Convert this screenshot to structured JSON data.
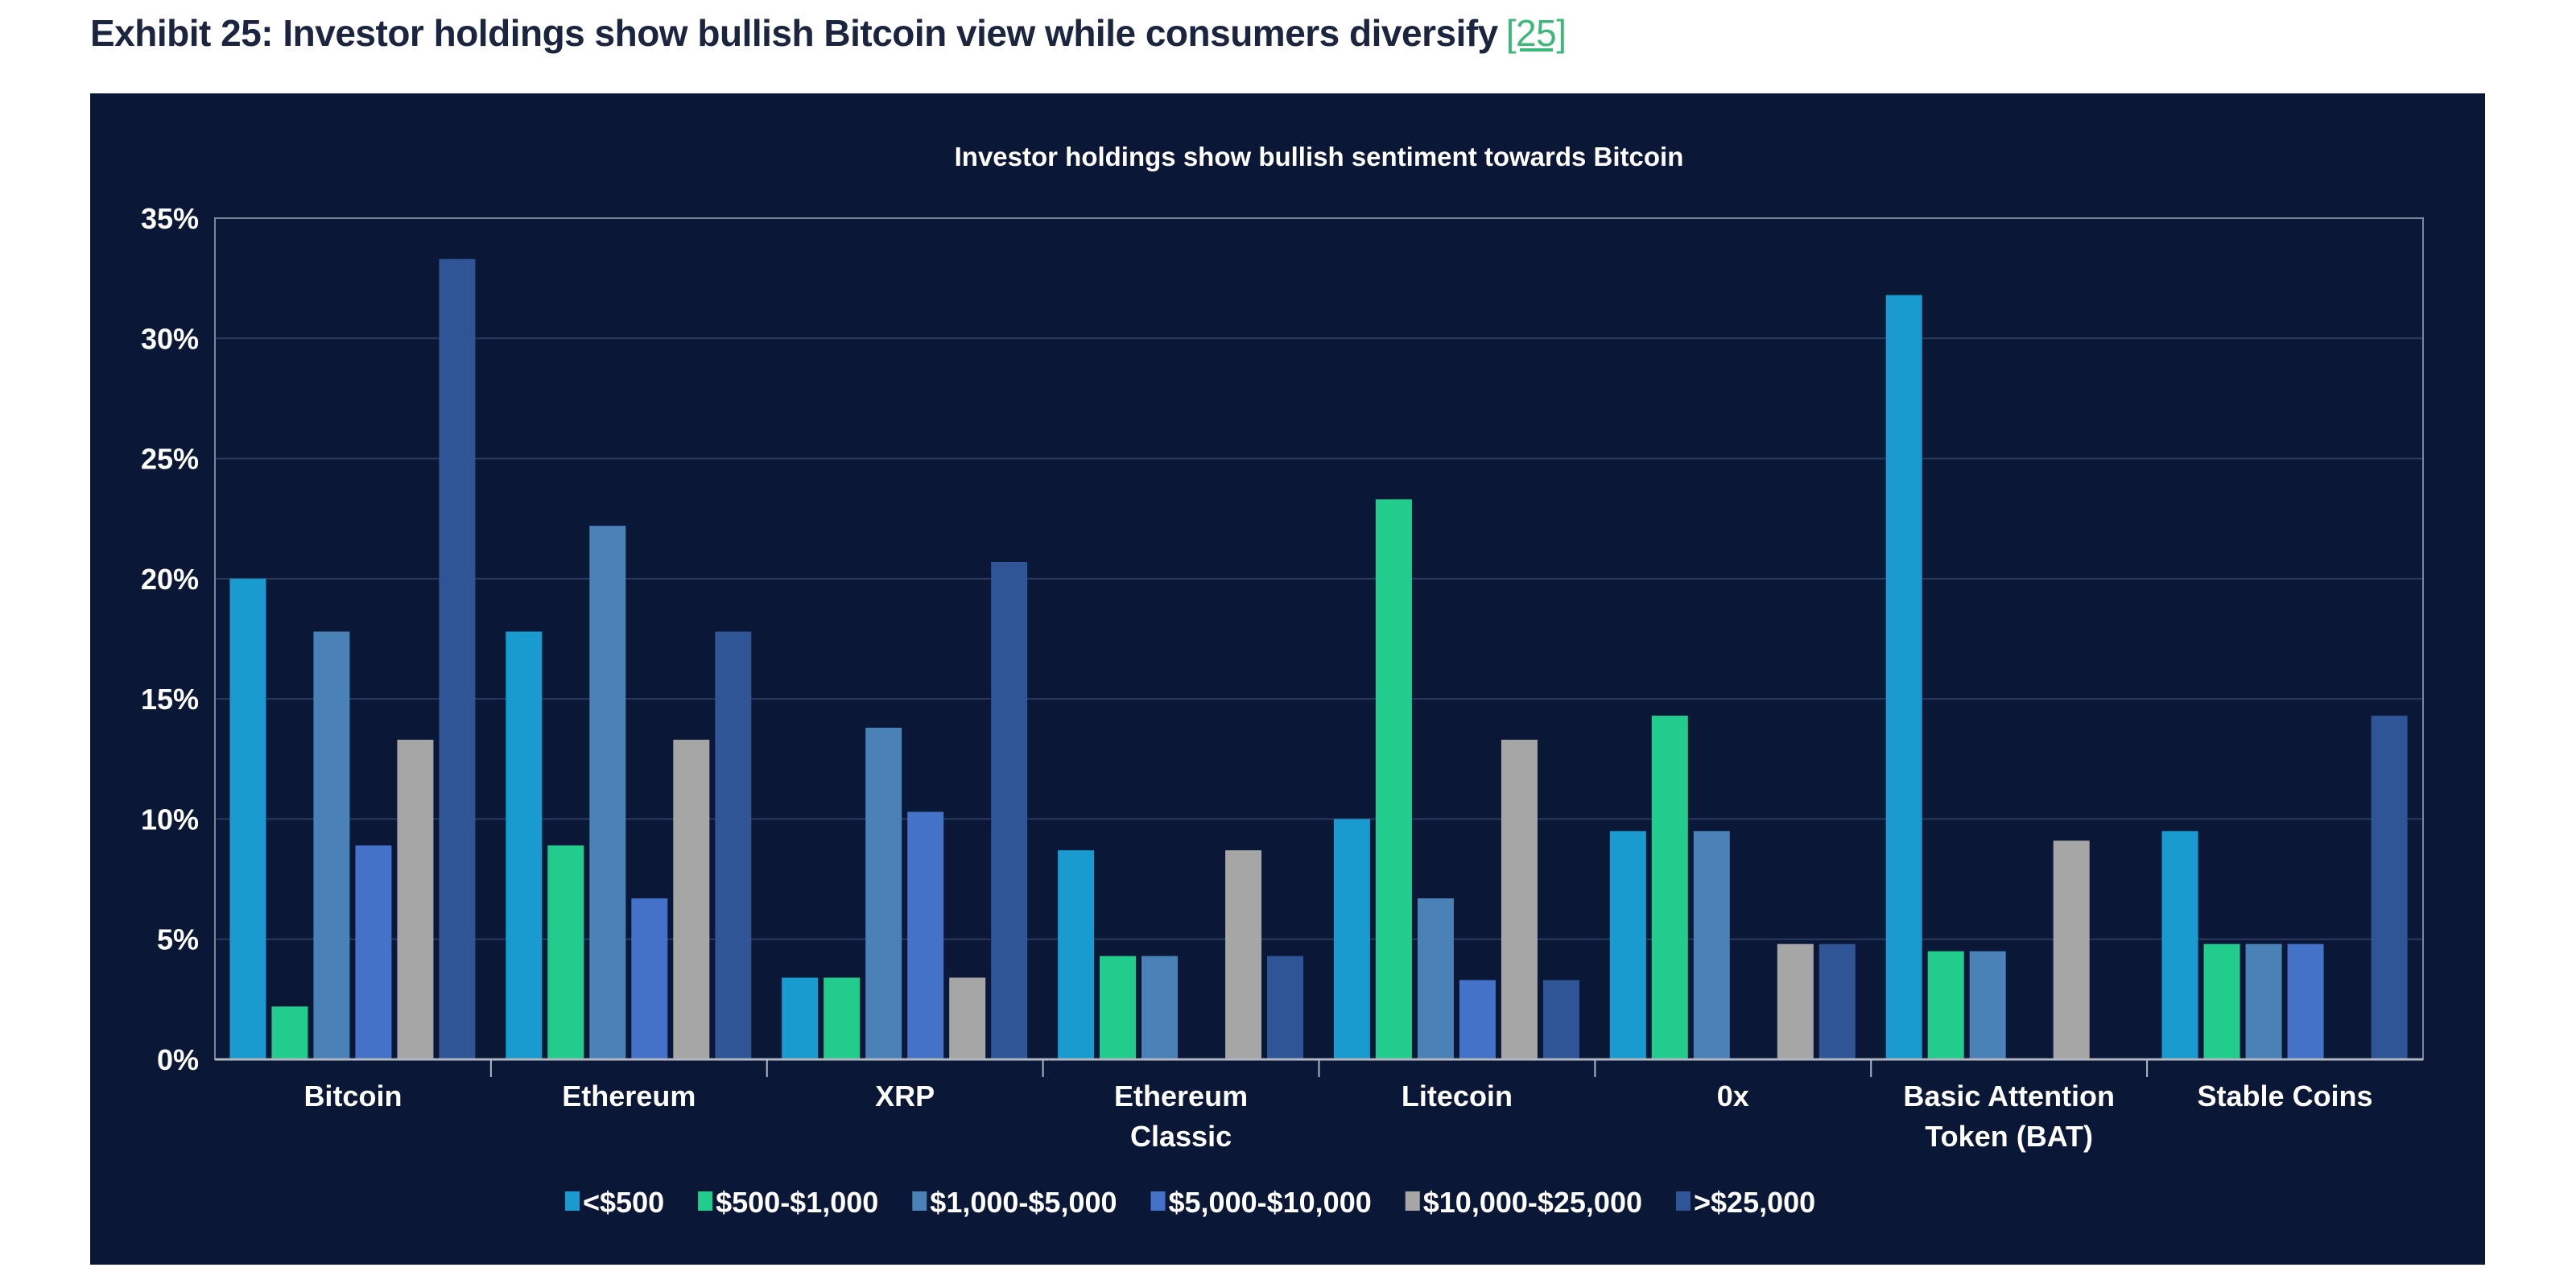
{
  "header": {
    "title": "Exhibit 25: Investor holdings show bullish Bitcoin view while consumers diversify",
    "ref": "[25]"
  },
  "colors": {
    "background": "#0b1736",
    "title": "#1b2540",
    "ref_link": "#3cb878"
  },
  "chart_data": {
    "type": "bar",
    "title": "Investor holdings show bullish sentiment towards Bitcoin",
    "xlabel": "",
    "ylabel": "",
    "ylim": [
      0,
      35
    ],
    "yticks": [
      "0%",
      "5%",
      "10%",
      "15%",
      "20%",
      "25%",
      "30%",
      "35%"
    ],
    "grid": true,
    "legend_position": "bottom",
    "categories": [
      [
        "Bitcoin"
      ],
      [
        "Ethereum"
      ],
      [
        "XRP"
      ],
      [
        "Ethereum",
        "Classic"
      ],
      [
        "Litecoin"
      ],
      [
        "0x"
      ],
      [
        "Basic Attention",
        "Token (BAT)"
      ],
      [
        "Stable Coins"
      ]
    ],
    "series": [
      {
        "name": "<$500",
        "color": "#1a9bd0",
        "values": [
          20.0,
          17.8,
          3.4,
          8.7,
          10.0,
          9.5,
          31.8,
          9.5
        ]
      },
      {
        "name": "$500-$1,000",
        "color": "#22cc8c",
        "values": [
          2.2,
          8.9,
          3.4,
          4.3,
          23.3,
          14.3,
          4.5,
          4.8
        ]
      },
      {
        "name": "$1,000-$5,000",
        "color": "#4a82b8",
        "values": [
          17.8,
          22.2,
          13.8,
          4.3,
          6.7,
          9.5,
          4.5,
          4.8
        ]
      },
      {
        "name": "$5,000-$10,000",
        "color": "#4472c8",
        "values": [
          8.9,
          6.7,
          10.3,
          0,
          3.3,
          0,
          0,
          4.8
        ]
      },
      {
        "name": "$10,000-$25,000",
        "color": "#a6a6a6",
        "values": [
          13.3,
          13.3,
          3.4,
          8.7,
          13.3,
          4.8,
          9.1,
          0
        ]
      },
      {
        "name": ">$25,000",
        "color": "#2f5597",
        "values": [
          33.3,
          17.8,
          20.7,
          4.3,
          3.3,
          4.8,
          0,
          14.3
        ]
      }
    ]
  }
}
